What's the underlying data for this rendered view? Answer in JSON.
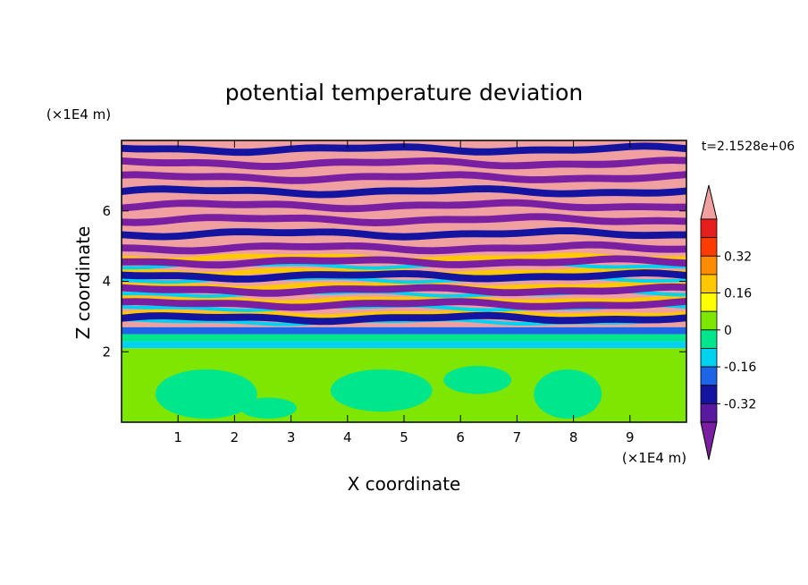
{
  "chart_data": {
    "type": "heatmap",
    "title": "potential temperature deviation",
    "xlabel": "X coordinate",
    "ylabel": "Z coordinate",
    "x_unit": "(×1E4 m)",
    "y_unit": "(×1E4 m)",
    "time_label": "t=2.1528e+06",
    "xlim": [
      0,
      10
    ],
    "ylim": [
      0,
      8
    ],
    "x_ticks": [
      "1",
      "2",
      "3",
      "4",
      "5",
      "6",
      "7",
      "8",
      "9"
    ],
    "y_ticks": [
      "2",
      "4",
      "6"
    ],
    "colorbar": {
      "levels": [
        -0.48,
        -0.4,
        -0.32,
        -0.24,
        -0.16,
        -0.08,
        0,
        0.08,
        0.16,
        0.24,
        0.32,
        0.4,
        0.48
      ],
      "colors": [
        "#7a1fa2",
        "#5a1aa0",
        "#1414a0",
        "#1e64e6",
        "#00d2f0",
        "#00e68c",
        "#7ee600",
        "#ffff00",
        "#ffc800",
        "#ff8c00",
        "#ff3c00",
        "#e61e1e",
        "#f0a0a0"
      ],
      "tick_labels": [
        "0.32",
        "0.16",
        "0",
        "-0.16",
        "-0.32"
      ]
    },
    "grid": false
  }
}
